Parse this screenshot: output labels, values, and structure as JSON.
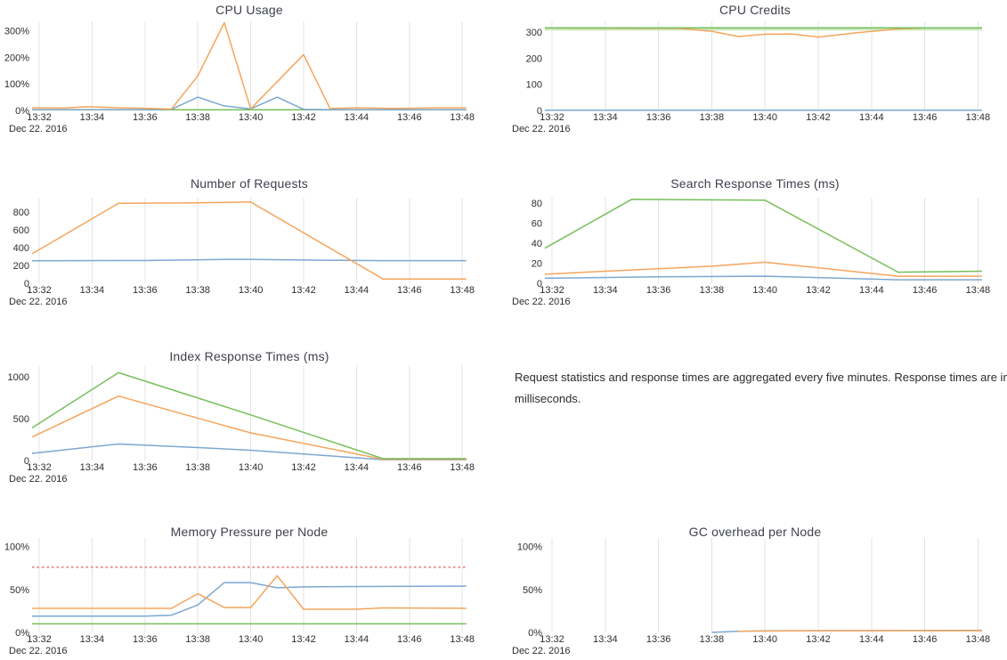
{
  "footnote": {
    "text": "Request statistics and response times are aggregated every five minutes. Response times are in milliseconds."
  },
  "axis": {
    "date_label": "Dec 22. 2016",
    "xticks": [
      32,
      34,
      36,
      38,
      40,
      42,
      44,
      46,
      48
    ],
    "xtick_labels": [
      "13:32",
      "13:34",
      "13:36",
      "13:38",
      "13:40",
      "13:42",
      "13:44",
      "13:46",
      "13:48"
    ]
  },
  "palette": {
    "blue": "#7da7d0",
    "orange": "#f5a55c",
    "green": "#76bf5b",
    "band": "#c9e8bd",
    "red": "#ee8d8d",
    "grid": "#e3e3e3",
    "tick_text": "#2d2d2d",
    "title_text": "#3e414b"
  },
  "chart_data": [
    {
      "type": "line",
      "title": "CPU Usage",
      "ylabel": "",
      "xlabel": "",
      "yticks": [
        0,
        100,
        200,
        300
      ],
      "ytick_labels": [
        "0%",
        "100%",
        "200%",
        "300%"
      ],
      "ymax": 335,
      "series": [
        {
          "name": "green",
          "color": "green",
          "width": 1.5,
          "points": [
            [
              31.73,
              2.5
            ],
            [
              48.15,
              2.5
            ]
          ]
        },
        {
          "name": "blue",
          "color": "blue",
          "width": 1.5,
          "points": [
            [
              31.73,
              3
            ],
            [
              36.5,
              3
            ],
            [
              37,
              4
            ],
            [
              38,
              50
            ],
            [
              39,
              17
            ],
            [
              40,
              6
            ],
            [
              41,
              50
            ],
            [
              42,
              4
            ],
            [
              43,
              3
            ],
            [
              48.15,
              3
            ]
          ]
        },
        {
          "name": "orange",
          "color": "orange",
          "width": 1.5,
          "points": [
            [
              31.73,
              10
            ],
            [
              33,
              9
            ],
            [
              33.8,
              14
            ],
            [
              35,
              10
            ],
            [
              36,
              8
            ],
            [
              37,
              5
            ],
            [
              38,
              130
            ],
            [
              39,
              330
            ],
            [
              40,
              6
            ],
            [
              42,
              210
            ],
            [
              43,
              7
            ],
            [
              44,
              10
            ],
            [
              45,
              8
            ],
            [
              46,
              8
            ],
            [
              47,
              10
            ],
            [
              48.15,
              10
            ]
          ]
        }
      ]
    },
    {
      "type": "line",
      "title": "CPU Credits",
      "yticks": [
        0,
        100,
        200,
        300
      ],
      "ytick_labels": [
        "0",
        "100",
        "200",
        "300"
      ],
      "ymax": 341,
      "series": [
        {
          "name": "credit-band",
          "color": "band",
          "width": 3,
          "points": [
            [
              31.73,
              311
            ],
            [
              48.15,
              311
            ]
          ]
        },
        {
          "name": "blue",
          "color": "blue",
          "width": 1.5,
          "points": [
            [
              31.73,
              1
            ],
            [
              48.15,
              1
            ]
          ]
        },
        {
          "name": "orange",
          "color": "orange",
          "width": 1.5,
          "points": [
            [
              31.73,
              316
            ],
            [
              36.8,
              314
            ],
            [
              38,
              303
            ],
            [
              39,
              283
            ],
            [
              40,
              292
            ],
            [
              41,
              293
            ],
            [
              42,
              281
            ],
            [
              43.5,
              298
            ],
            [
              45,
              312
            ],
            [
              46,
              316
            ],
            [
              48.15,
              316
            ]
          ]
        },
        {
          "name": "green",
          "color": "green",
          "width": 1.5,
          "points": [
            [
              31.73,
              316
            ],
            [
              48.15,
              316
            ]
          ]
        }
      ]
    },
    {
      "type": "line",
      "title": "Number of Requests",
      "yticks": [
        0,
        200,
        400,
        600,
        800
      ],
      "ytick_labels": [
        "0",
        "200",
        "400",
        "600",
        "800"
      ],
      "ymax": 960,
      "series": [
        {
          "name": "blue",
          "color": "blue",
          "width": 1.5,
          "points": [
            [
              31.73,
              253
            ],
            [
              36,
              255
            ],
            [
              39,
              267
            ],
            [
              40,
              267
            ],
            [
              43,
              258
            ],
            [
              45,
              254
            ],
            [
              48.15,
              254
            ]
          ]
        },
        {
          "name": "orange",
          "color": "orange",
          "width": 1.5,
          "points": [
            [
              31.73,
              330
            ],
            [
              35,
              898
            ],
            [
              38,
              903
            ],
            [
              40,
              912
            ],
            [
              45,
              48
            ],
            [
              48.15,
              48
            ]
          ]
        }
      ]
    },
    {
      "type": "line",
      "title": "Search Response Times (ms)",
      "yticks": [
        0,
        20,
        40,
        60,
        80
      ],
      "ytick_labels": [
        "0",
        "20",
        "40",
        "60",
        "80"
      ],
      "ymax": 85.5,
      "series": [
        {
          "name": "blue",
          "color": "blue",
          "width": 1.5,
          "points": [
            [
              31.73,
              5
            ],
            [
              36,
              6.5
            ],
            [
              40,
              7
            ],
            [
              45,
              3.5
            ],
            [
              48.15,
              3.5
            ]
          ]
        },
        {
          "name": "orange",
          "color": "orange",
          "width": 1.5,
          "points": [
            [
              31.73,
              9
            ],
            [
              34,
              12
            ],
            [
              38,
              17
            ],
            [
              40,
              21
            ],
            [
              45,
              7
            ],
            [
              48.15,
              7
            ]
          ]
        },
        {
          "name": "green",
          "color": "green",
          "width": 1.5,
          "points": [
            [
              31.73,
              35
            ],
            [
              35,
              84
            ],
            [
              40,
              83
            ],
            [
              45,
              11
            ],
            [
              48.15,
              12
            ]
          ]
        }
      ]
    },
    {
      "type": "line",
      "title": "Index Response Times (ms)",
      "yticks": [
        0,
        500,
        1000
      ],
      "ytick_labels": [
        "0",
        "500",
        "1000"
      ],
      "ymax": 1140,
      "series": [
        {
          "name": "blue",
          "color": "blue",
          "width": 1.5,
          "points": [
            [
              31.73,
              85
            ],
            [
              35,
              197
            ],
            [
              38,
              155
            ],
            [
              40,
              122
            ],
            [
              45,
              10
            ],
            [
              48.15,
              10
            ]
          ]
        },
        {
          "name": "orange",
          "color": "orange",
          "width": 1.5,
          "points": [
            [
              31.73,
              280
            ],
            [
              35,
              770
            ],
            [
              40,
              330
            ],
            [
              45,
              15
            ],
            [
              48.15,
              15
            ]
          ]
        },
        {
          "name": "green",
          "color": "green",
          "width": 1.5,
          "points": [
            [
              31.73,
              390
            ],
            [
              35,
              1050
            ],
            [
              40,
              545
            ],
            [
              45,
              22
            ],
            [
              48.15,
              22
            ]
          ]
        }
      ]
    },
    {
      "type": "line",
      "title": "Memory Pressure per Node",
      "yticks": [
        0,
        50,
        100
      ],
      "ytick_labels": [
        "0%",
        "50%",
        "100%"
      ],
      "ymax": 110,
      "series": [
        {
          "name": "green",
          "color": "green",
          "width": 1.5,
          "points": [
            [
              31.73,
              10
            ],
            [
              48.15,
              10
            ]
          ]
        },
        {
          "name": "blue",
          "color": "blue",
          "width": 1.5,
          "points": [
            [
              31.73,
              19
            ],
            [
              36,
              19
            ],
            [
              37,
              20
            ],
            [
              38,
              32
            ],
            [
              39,
              58
            ],
            [
              40,
              58
            ],
            [
              41,
              52
            ],
            [
              42,
              53
            ],
            [
              45,
              53.5
            ],
            [
              48.15,
              54
            ]
          ]
        },
        {
          "name": "orange",
          "color": "orange",
          "width": 1.5,
          "points": [
            [
              31.73,
              28
            ],
            [
              37,
              28
            ],
            [
              38,
              45
            ],
            [
              39,
              29
            ],
            [
              40,
              29
            ],
            [
              41,
              66
            ],
            [
              42,
              27
            ],
            [
              44,
              27
            ],
            [
              45,
              28.5
            ],
            [
              48.15,
              28
            ]
          ]
        },
        {
          "name": "red-threshold",
          "color": "red",
          "width": 2,
          "dash": "2.5 3",
          "points": [
            [
              31.73,
              76
            ],
            [
              48.15,
              76
            ]
          ]
        }
      ]
    },
    {
      "type": "line",
      "title": "GC overhead per Node",
      "yticks": [
        0,
        50,
        100
      ],
      "ytick_labels": [
        "0%",
        "50%",
        "100%"
      ],
      "ymax": 110,
      "series": [
        {
          "name": "blue",
          "color": "blue",
          "width": 1.5,
          "points": [
            [
              38,
              0
            ],
            [
              39,
              1.2
            ],
            [
              40,
              1.8
            ],
            [
              41,
              2
            ],
            [
              48.15,
              2.3
            ]
          ]
        },
        {
          "name": "orange",
          "color": "orange",
          "width": 1.5,
          "points": [
            [
              39,
              1.4
            ],
            [
              41,
              1.9
            ],
            [
              48.15,
              2
            ]
          ]
        }
      ]
    }
  ]
}
